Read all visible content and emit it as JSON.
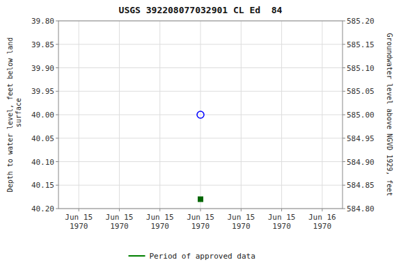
{
  "chart_data": {
    "type": "scatter",
    "title": "USGS 392208077032901 CL Ed  84",
    "y_label": "Depth to water level, feet below land\n surface",
    "y2_label": "Groundwater level above NGVD 1929, feet",
    "categories": [
      "Jun 15\n1970",
      "Jun 15\n1970",
      "Jun 15\n1970",
      "Jun 15\n1970",
      "Jun 15\n1970",
      "Jun 15\n1970",
      "Jun 16\n1970"
    ],
    "series": [
      {
        "type": "scatter",
        "marker": "open-circle",
        "color": "#0000ff",
        "values": [
          null,
          null,
          null,
          40.0,
          null,
          null,
          null
        ]
      },
      {
        "type": "scatter",
        "marker": "square",
        "color": "#006600",
        "values": [
          null,
          null,
          null,
          40.18,
          null,
          null,
          null
        ]
      },
      {
        "type": "line",
        "name": "Period of approved data",
        "color": "#008000",
        "values": [
          null,
          null,
          null,
          null,
          null,
          null,
          null
        ]
      }
    ],
    "ylim": [
      40.2,
      39.8
    ],
    "yticks": [
      {
        "value": 39.8,
        "label": "39.80"
      },
      {
        "value": 39.85,
        "label": "39.85"
      },
      {
        "value": 39.9,
        "label": "39.90"
      },
      {
        "value": 39.95,
        "label": "39.95"
      },
      {
        "value": 40.0,
        "label": "40.00"
      },
      {
        "value": 40.05,
        "label": "40.05"
      },
      {
        "value": 40.1,
        "label": "40.10"
      },
      {
        "value": 40.15,
        "label": "40.15"
      },
      {
        "value": 40.2,
        "label": "40.20"
      }
    ],
    "y2lim": [
      584.8,
      585.2
    ],
    "y2ticks": [
      {
        "value": 585.2,
        "label": "585.20"
      },
      {
        "value": 585.15,
        "label": "585.15"
      },
      {
        "value": 585.1,
        "label": "585.10"
      },
      {
        "value": 585.05,
        "label": "585.05"
      },
      {
        "value": 585.0,
        "label": "585.00"
      },
      {
        "value": 584.95,
        "label": "584.95"
      },
      {
        "value": 584.9,
        "label": "584.90"
      },
      {
        "value": 584.85,
        "label": "584.85"
      },
      {
        "value": 584.8,
        "label": "584.80"
      }
    ],
    "grid": true,
    "legend": "bottom"
  }
}
